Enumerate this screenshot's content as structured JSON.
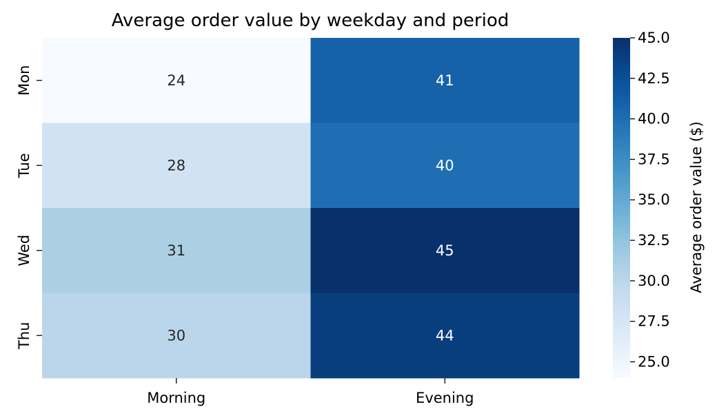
{
  "chart_data": {
    "type": "heatmap",
    "title": "Average order value by weekday and period",
    "xlabel": "",
    "ylabel": "",
    "x_categories": [
      "Morning",
      "Evening"
    ],
    "y_categories": [
      "Mon",
      "Tue",
      "Wed",
      "Thu"
    ],
    "values": [
      [
        24,
        41
      ],
      [
        28,
        40
      ],
      [
        31,
        45
      ],
      [
        30,
        44
      ]
    ],
    "colorbar": {
      "label": "Average order value ($)",
      "min": 24,
      "max": 45,
      "ticks": [
        "25.0",
        "27.5",
        "30.0",
        "32.5",
        "35.0",
        "37.5",
        "40.0",
        "42.5",
        "45.0"
      ],
      "colormap": "Blues"
    },
    "annotate_cells": true
  }
}
